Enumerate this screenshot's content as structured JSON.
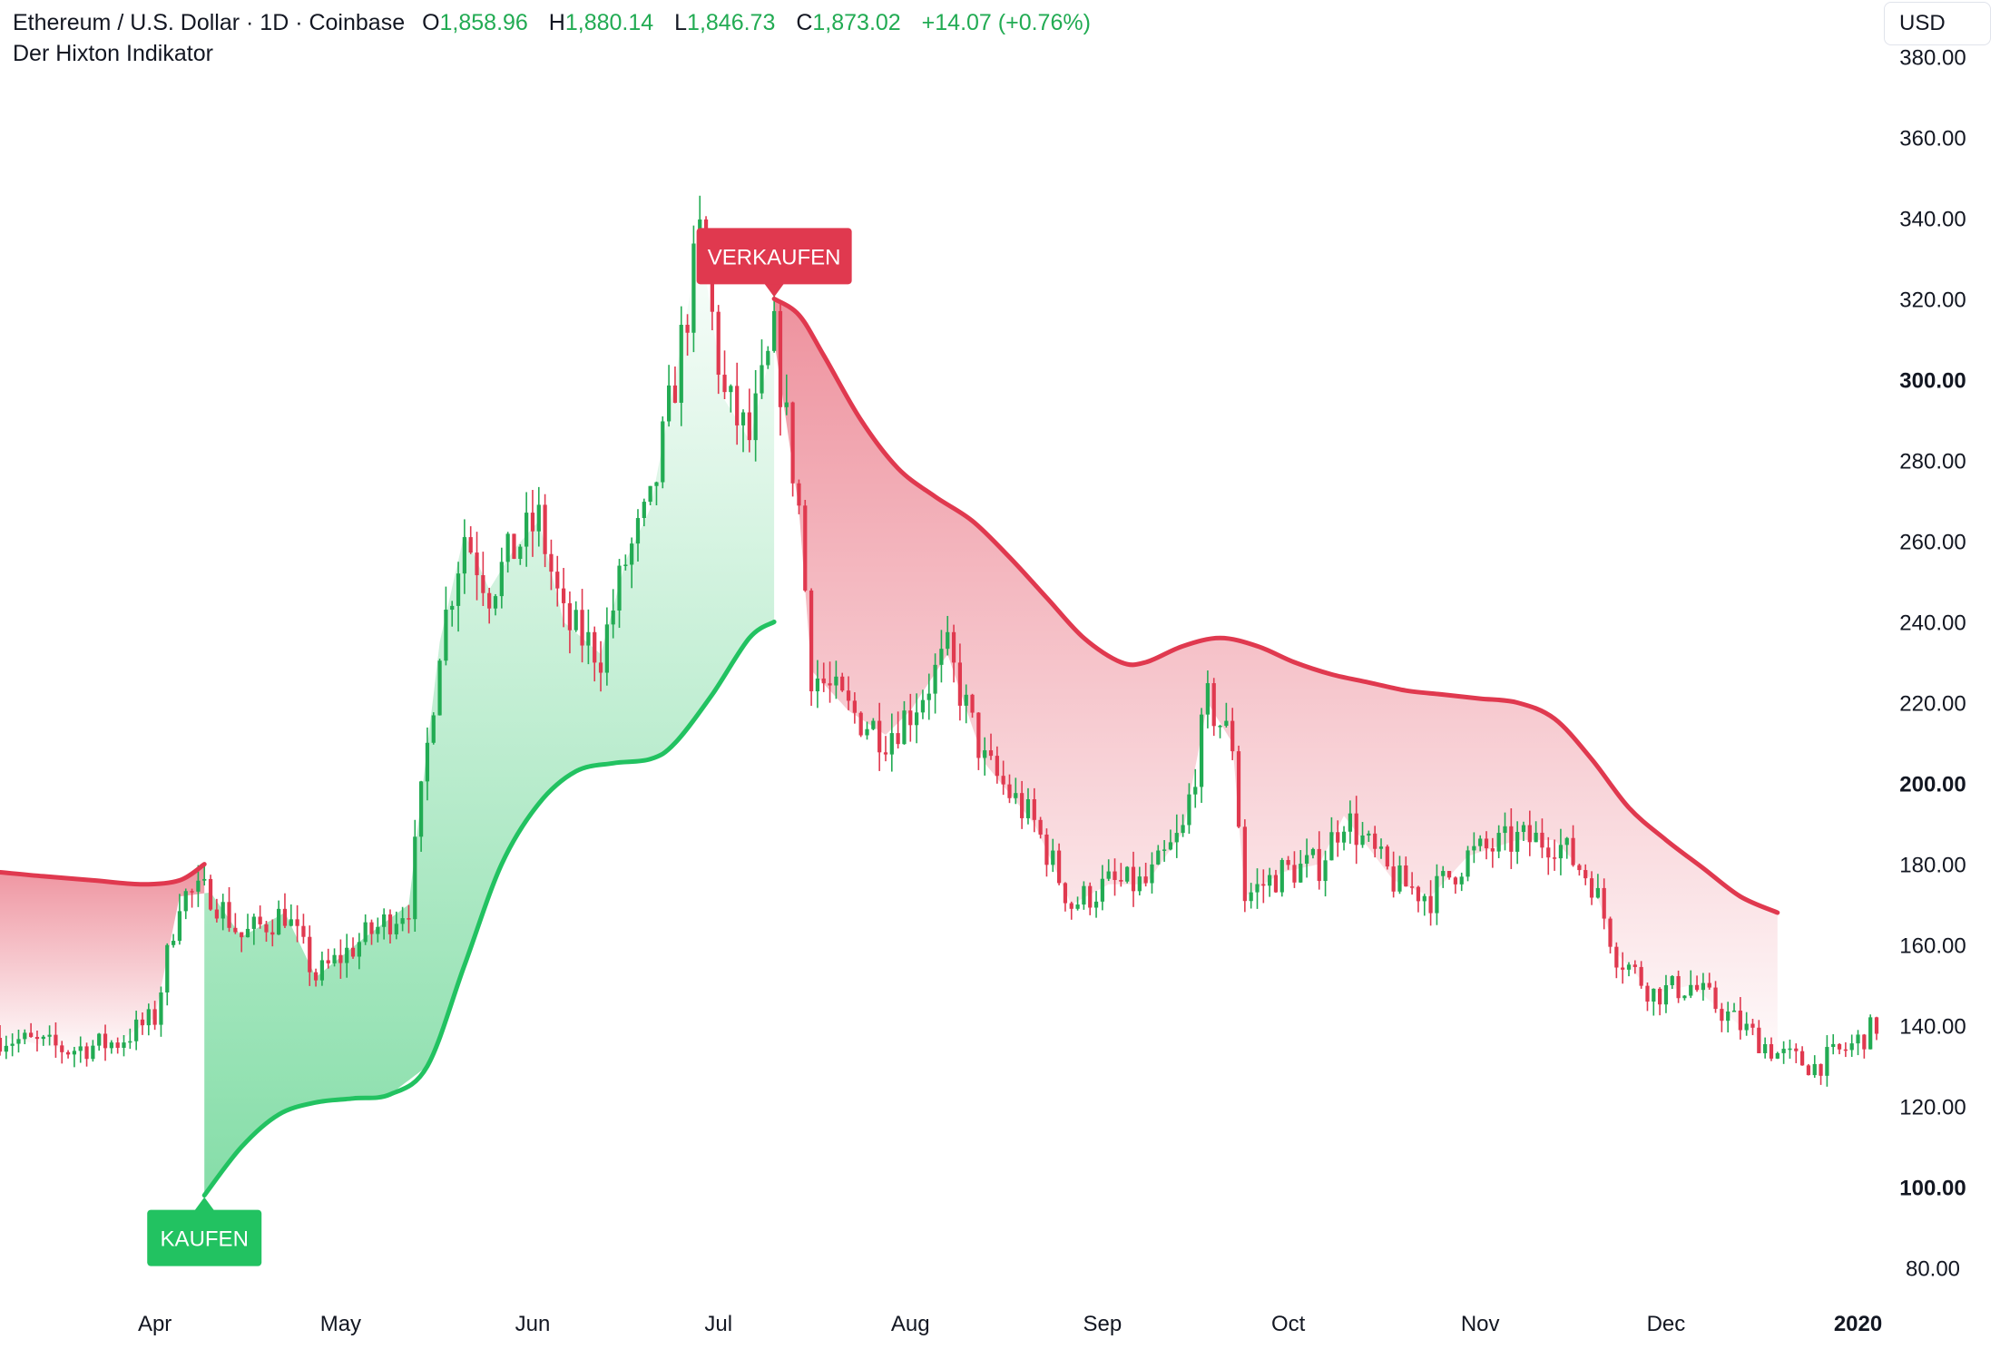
{
  "header": {
    "symbol": "Ethereum / U.S. Dollar · 1D · Coinbase",
    "open_label": "O",
    "open": "1,858.96",
    "high_label": "H",
    "high": "1,880.14",
    "low_label": "L",
    "low": "1,846.73",
    "close_label": "C",
    "close": "1,873.02",
    "change": "+14.07 (+0.76%)",
    "indicator": "Der Hixton Indikator"
  },
  "currency": "USD",
  "signals": {
    "buy": "KAUFEN",
    "sell": "VERKAUFEN"
  },
  "colors": {
    "up": "#22ab53",
    "down": "#e0394f",
    "buy": "#22c261",
    "sell": "#e0394f",
    "axis_text": "#131722"
  },
  "chart_data": {
    "type": "candlestick",
    "title": "",
    "ylim": [
      75,
      385
    ],
    "y_ticks": [
      "380.00",
      "360.00",
      "340.00",
      "320.00",
      "300.00",
      "280.00",
      "260.00",
      "240.00",
      "220.00",
      "200.00",
      "180.00",
      "160.00",
      "140.00",
      "120.00",
      "100.00",
      "80.00"
    ],
    "y_ticks_bold": [
      "300.00",
      "200.00",
      "100.00"
    ],
    "x_ticks": [
      {
        "label": "Apr",
        "day": 24
      },
      {
        "label": "May",
        "day": 54
      },
      {
        "label": "Jun",
        "day": 85
      },
      {
        "label": "Jul",
        "day": 115
      },
      {
        "label": "Aug",
        "day": 146
      },
      {
        "label": "Sep",
        "day": 177
      },
      {
        "label": "Oct",
        "day": 207
      },
      {
        "label": "Nov",
        "day": 238
      },
      {
        "label": "Dec",
        "day": 268
      },
      {
        "label": "2020",
        "day": 299,
        "bold": true
      }
    ],
    "day_range": [
      -1,
      302
    ],
    "close_points": [
      [
        0,
        137
      ],
      [
        10,
        134
      ],
      [
        18,
        136
      ],
      [
        24,
        142
      ],
      [
        28,
        172
      ],
      [
        33,
        173
      ],
      [
        38,
        162
      ],
      [
        45,
        168
      ],
      [
        50,
        152
      ],
      [
        58,
        162
      ],
      [
        65,
        170
      ],
      [
        70,
        235
      ],
      [
        74,
        262
      ],
      [
        78,
        248
      ],
      [
        82,
        258
      ],
      [
        86,
        265
      ],
      [
        90,
        240
      ],
      [
        96,
        232
      ],
      [
        100,
        255
      ],
      [
        104,
        268
      ],
      [
        108,
        300
      ],
      [
        112,
        335
      ],
      [
        116,
        295
      ],
      [
        120,
        285
      ],
      [
        124,
        310
      ],
      [
        128,
        268
      ],
      [
        130,
        228
      ],
      [
        136,
        218
      ],
      [
        142,
        212
      ],
      [
        146,
        218
      ],
      [
        152,
        232
      ],
      [
        158,
        205
      ],
      [
        166,
        190
      ],
      [
        172,
        170
      ],
      [
        178,
        175
      ],
      [
        184,
        175
      ],
      [
        190,
        188
      ],
      [
        194,
        220
      ],
      [
        198,
        210
      ],
      [
        200,
        172
      ],
      [
        206,
        178
      ],
      [
        212,
        180
      ],
      [
        216,
        192
      ],
      [
        224,
        176
      ],
      [
        230,
        172
      ],
      [
        236,
        182
      ],
      [
        244,
        186
      ],
      [
        250,
        186
      ],
      [
        256,
        176
      ],
      [
        260,
        158
      ],
      [
        266,
        148
      ],
      [
        272,
        150
      ],
      [
        280,
        140
      ],
      [
        286,
        133
      ],
      [
        292,
        130
      ],
      [
        298,
        135
      ],
      [
        302,
        140
      ]
    ],
    "bull_band": [
      [
        32,
        98
      ],
      [
        38,
        110
      ],
      [
        44,
        118
      ],
      [
        50,
        121
      ],
      [
        56,
        122
      ],
      [
        62,
        123
      ],
      [
        68,
        130
      ],
      [
        74,
        155
      ],
      [
        80,
        180
      ],
      [
        86,
        195
      ],
      [
        92,
        203
      ],
      [
        98,
        205
      ],
      [
        104,
        206
      ],
      [
        108,
        210
      ],
      [
        114,
        222
      ],
      [
        120,
        236
      ],
      [
        124,
        240
      ]
    ],
    "bear_band_early": [
      [
        -1,
        178
      ],
      [
        6,
        177
      ],
      [
        14,
        176
      ],
      [
        22,
        175
      ],
      [
        28,
        176
      ],
      [
        32,
        180
      ]
    ],
    "bear_band_late": [
      [
        124,
        320
      ],
      [
        128,
        316
      ],
      [
        132,
        306
      ],
      [
        138,
        290
      ],
      [
        144,
        278
      ],
      [
        150,
        271
      ],
      [
        156,
        265
      ],
      [
        162,
        256
      ],
      [
        168,
        246
      ],
      [
        174,
        236
      ],
      [
        180,
        230
      ],
      [
        184,
        230
      ],
      [
        190,
        234
      ],
      [
        196,
        236
      ],
      [
        202,
        234
      ],
      [
        208,
        230
      ],
      [
        214,
        227
      ],
      [
        220,
        225
      ],
      [
        226,
        223
      ],
      [
        232,
        222
      ],
      [
        238,
        221
      ],
      [
        244,
        220
      ],
      [
        250,
        216
      ],
      [
        256,
        206
      ],
      [
        262,
        194
      ],
      [
        268,
        186
      ],
      [
        274,
        179
      ],
      [
        280,
        172
      ],
      [
        286,
        168
      ]
    ],
    "buy_signal": {
      "day": 32,
      "price": 98
    },
    "sell_signal": {
      "day": 124,
      "price": 320
    }
  }
}
